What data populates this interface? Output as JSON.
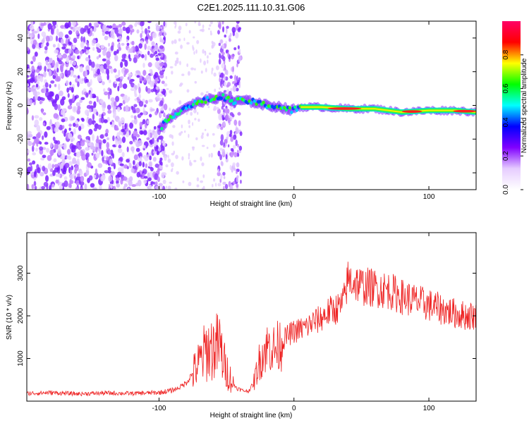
{
  "title": "C2E1.2025.111.10.31.G06",
  "chart_data": [
    {
      "type": "heatmap",
      "xlabel": "Height of straight line (km)",
      "ylabel": "Frequency (Hz)",
      "xlim": [
        -198,
        135
      ],
      "ylim": [
        -50,
        50
      ],
      "xticks": [
        -100,
        0,
        100
      ],
      "yticks": [
        -40,
        -20,
        0,
        20,
        40
      ],
      "colorbar": {
        "label": "Normalized spectral amplitude",
        "range": [
          0,
          1
        ],
        "ticks": [
          "0.0",
          "0.2",
          "0.4",
          "0.6",
          "0.8"
        ],
        "colormap": [
          "#ffffff",
          "#e6ccff",
          "#8000ff",
          "#0000ff",
          "#00ffff",
          "#00ff00",
          "#ffff00",
          "#ff0000",
          "#ff0066"
        ]
      },
      "trace": {
        "x": [
          -100,
          -90,
          -80,
          -70,
          -60,
          -52,
          -45,
          -38,
          -30,
          -20,
          -10,
          -2,
          5,
          20,
          40,
          60,
          80,
          100,
          120,
          135
        ],
        "y": [
          -14,
          -6,
          -1,
          2,
          4,
          5,
          2,
          3,
          2,
          0,
          -1,
          -3,
          -1,
          -1,
          -2,
          -2,
          -4,
          -3,
          -3,
          -4
        ]
      }
    },
    {
      "type": "line",
      "xlabel": "Height of straight line (km)",
      "ylabel": "SNR (10 * v/v)",
      "xlim": [
        -198,
        135
      ],
      "ylim": [
        0,
        3950
      ],
      "xticks": [
        -100,
        0,
        100
      ],
      "yticks": [
        1000,
        2000,
        3000
      ],
      "color": "#ee2020",
      "series": [
        {
          "x": [
            -198,
            -180,
            -160,
            -140,
            -120,
            -100,
            -90,
            -85,
            -80,
            -75,
            -70,
            -65,
            -60,
            -55,
            -52,
            -48,
            -45,
            -42,
            -38,
            -34,
            -30,
            -26,
            -22,
            -18,
            -14,
            -10,
            -6,
            -2,
            2,
            6,
            10,
            14,
            18,
            22,
            26,
            30,
            34,
            37,
            40,
            45,
            50,
            60,
            70,
            80,
            90,
            100,
            110,
            120,
            128,
            135
          ],
          "y": [
            180,
            200,
            170,
            190,
            180,
            200,
            250,
            320,
            430,
            650,
            900,
            1200,
            1250,
            1300,
            900,
            600,
            400,
            300,
            250,
            230,
            400,
            900,
            1200,
            1300,
            1200,
            1350,
            1500,
            1600,
            1650,
            1700,
            1750,
            1850,
            1900,
            2000,
            2100,
            2150,
            2200,
            2350,
            2850,
            2800,
            2700,
            2650,
            2600,
            2450,
            2350,
            2250,
            2150,
            2050,
            2000,
            2000
          ]
        }
      ]
    }
  ]
}
